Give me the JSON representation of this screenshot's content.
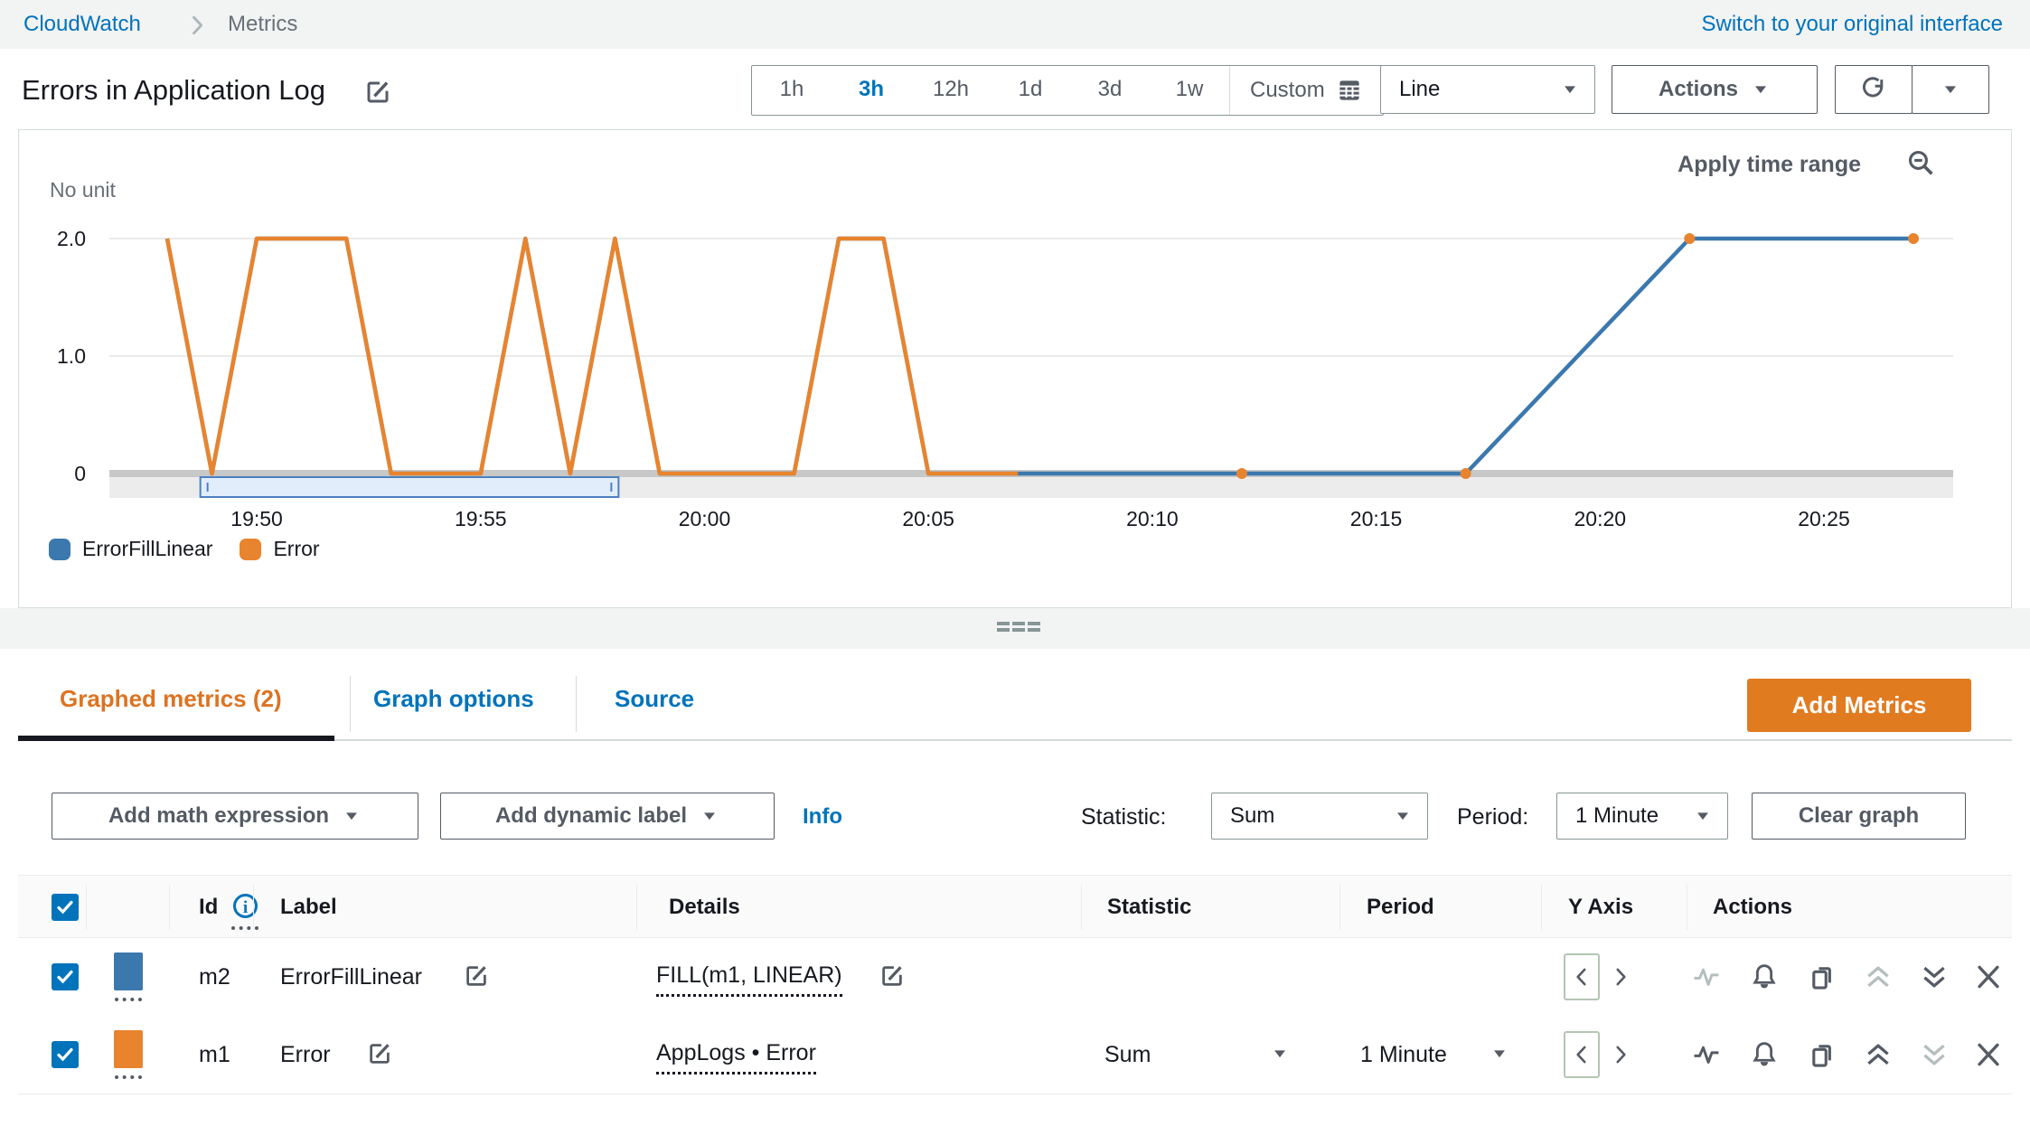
{
  "breadcrumb": {
    "app": "CloudWatch",
    "page": "Metrics"
  },
  "header": {
    "switch_link": "Switch to your original interface",
    "title": "Errors in Application Log"
  },
  "toolbar": {
    "ranges": [
      "1h",
      "3h",
      "12h",
      "1d",
      "3d",
      "1w"
    ],
    "active_range": "3h",
    "custom_label": "Custom",
    "line_select": "Line",
    "actions_label": "Actions"
  },
  "chart": {
    "apply_time_range": "Apply time range",
    "unit_label": "No unit"
  },
  "chart_data": {
    "type": "line",
    "title": "Errors in Application Log",
    "ylabel": "No unit",
    "ylim": [
      0,
      2
    ],
    "grid": true,
    "legend_position": "bottom-left",
    "yticks": [
      {
        "label": "2.0",
        "v": 2
      },
      {
        "label": "1.0",
        "v": 1
      },
      {
        "label": "0",
        "v": 0
      }
    ],
    "x_start_time": "19:48",
    "x_ticks": [
      {
        "label": "19:50",
        "m": 2
      },
      {
        "label": "19:55",
        "m": 7
      },
      {
        "label": "20:00",
        "m": 12
      },
      {
        "label": "20:05",
        "m": 17
      },
      {
        "label": "20:10",
        "m": 22
      },
      {
        "label": "20:15",
        "m": 27
      },
      {
        "label": "20:20",
        "m": 32
      },
      {
        "label": "20:25",
        "m": 37
      }
    ],
    "series": [
      {
        "name": "ErrorFillLinear",
        "color": "#3b78ad",
        "points": [
          [
            0,
            2
          ],
          [
            1,
            0
          ],
          [
            2,
            2
          ],
          [
            3,
            2
          ],
          [
            4,
            2
          ],
          [
            5,
            0
          ],
          [
            6,
            0
          ],
          [
            7,
            0
          ],
          [
            8,
            2
          ],
          [
            9,
            0
          ],
          [
            10,
            2
          ],
          [
            11,
            0
          ],
          [
            12,
            0
          ],
          [
            13,
            0
          ],
          [
            14,
            0
          ],
          [
            15,
            2
          ],
          [
            16,
            2
          ],
          [
            17,
            0
          ],
          [
            18,
            0
          ],
          [
            19,
            0
          ],
          [
            24,
            0
          ],
          [
            29,
            0
          ],
          [
            34,
            2
          ],
          [
            39,
            2
          ]
        ]
      },
      {
        "name": "Error",
        "color": "#e8842e",
        "points": [
          [
            0,
            2
          ],
          [
            1,
            0
          ],
          [
            2,
            2
          ],
          [
            3,
            2
          ],
          [
            4,
            2
          ],
          [
            5,
            0
          ],
          [
            6,
            0
          ],
          [
            7,
            0
          ],
          [
            8,
            2
          ],
          [
            9,
            0
          ],
          [
            10,
            2
          ],
          [
            11,
            0
          ],
          [
            12,
            0
          ],
          [
            13,
            0
          ],
          [
            14,
            0
          ],
          [
            15,
            2
          ],
          [
            16,
            2
          ],
          [
            17,
            0
          ],
          [
            18,
            0
          ],
          [
            19,
            0
          ]
        ],
        "isolated_points": [
          [
            24,
            0
          ],
          [
            29,
            0
          ],
          [
            34,
            2
          ],
          [
            39,
            2
          ]
        ]
      }
    ],
    "brush_selection": {
      "from_m": 0.74,
      "to_m": 10.08
    }
  },
  "tabs": {
    "graphed": "Graphed metrics (2)",
    "options": "Graph options",
    "source": "Source",
    "add_metrics": "Add Metrics"
  },
  "controls": {
    "add_math": "Add math expression",
    "add_label": "Add dynamic label",
    "info": "Info",
    "statistic_label": "Statistic:",
    "statistic_value": "Sum",
    "period_label": "Period:",
    "period_value": "1 Minute",
    "clear_graph": "Clear graph"
  },
  "table": {
    "headers": {
      "id": "Id",
      "label": "Label",
      "details": "Details",
      "statistic": "Statistic",
      "period": "Period",
      "yaxis": "Y Axis",
      "actions": "Actions"
    },
    "rows": [
      {
        "id": "m2",
        "label": "ErrorFillLinear",
        "details": "FILL(m1, LINEAR)",
        "statistic": "",
        "period": "",
        "color": "#3b78ad",
        "checked": true
      },
      {
        "id": "m1",
        "label": "Error",
        "details": "AppLogs • Error",
        "statistic": "Sum",
        "period": "1 Minute",
        "color": "#e8842e",
        "checked": true
      }
    ]
  }
}
